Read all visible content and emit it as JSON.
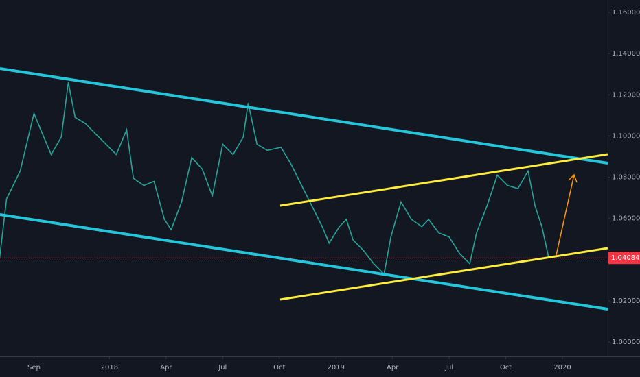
{
  "chart_data": {
    "type": "line",
    "x": [
      -5.82,
      -5.45,
      -4.73,
      -4.0,
      -3.64,
      -3.09,
      -2.55,
      -2.18,
      -1.82,
      -1.27,
      -0.73,
      -0.18,
      0.36,
      0.91,
      1.27,
      1.82,
      2.36,
      2.91,
      3.27,
      3.82,
      4.36,
      4.91,
      5.45,
      6.0,
      6.55,
      7.09,
      7.35,
      7.82,
      8.36,
      9.09,
      9.64,
      10.18,
      10.73,
      11.27,
      11.64,
      12.18,
      12.55,
      12.91,
      13.45,
      14.0,
      14.55,
      14.91,
      15.45,
      16.0,
      16.55,
      16.91,
      17.45,
      18.0,
      18.55,
      19.09,
      19.45,
      20.0,
      20.55,
      21.09,
      21.64,
      22.18,
      22.55,
      22.91,
      23.27
    ],
    "series": [
      {
        "color": "#26a69a",
        "values": [
          1.041,
          1.0695,
          1.083,
          1.111,
          1.103,
          1.091,
          1.0995,
          1.126,
          1.109,
          1.106,
          1.101,
          1.096,
          1.091,
          1.103,
          1.0795,
          1.076,
          1.078,
          1.0595,
          1.0545,
          1.068,
          1.0895,
          1.084,
          1.071,
          1.096,
          1.091,
          1.0995,
          1.116,
          1.096,
          1.093,
          1.0945,
          1.086,
          1.076,
          1.066,
          1.056,
          1.048,
          1.056,
          1.0595,
          1.0495,
          1.0445,
          1.038,
          1.033,
          1.051,
          1.068,
          1.0595,
          1.056,
          1.0595,
          1.053,
          1.051,
          1.043,
          1.038,
          1.053,
          1.066,
          1.081,
          1.076,
          1.0745,
          1.083,
          1.066,
          1.056,
          1.041
        ]
      }
    ],
    "xlim": [
      -5.8,
      26.4
    ],
    "xticks": [
      {
        "value": -4,
        "label": "Sep"
      },
      {
        "value": 0,
        "label": "2018"
      },
      {
        "value": 3,
        "label": "Apr"
      },
      {
        "value": 6,
        "label": "Jul"
      },
      {
        "value": 9,
        "label": "Oct"
      },
      {
        "value": 12,
        "label": "2019"
      },
      {
        "value": 15,
        "label": "Apr"
      },
      {
        "value": 18,
        "label": "Jul"
      },
      {
        "value": 21,
        "label": "Oct"
      },
      {
        "value": 24,
        "label": "2020"
      }
    ],
    "ylim": [
      0.993,
      1.166
    ],
    "yticks": [
      {
        "value": 1.0,
        "label": "1.00000"
      },
      {
        "value": 1.02,
        "label": "1.02000"
      },
      {
        "value": 1.04,
        "label": "1.04000"
      },
      {
        "value": 1.06,
        "label": "1.06000"
      },
      {
        "value": 1.08,
        "label": "1.08000"
      },
      {
        "value": 1.1,
        "label": "1.10000"
      },
      {
        "value": 1.12,
        "label": "1.12000"
      },
      {
        "value": 1.14,
        "label": "1.14000"
      },
      {
        "value": 1.16,
        "label": "1.16000"
      }
    ],
    "last_price": {
      "value": 1.04084,
      "label": "1.04084"
    },
    "last_price_color": "#f23645",
    "grid": false
  }
}
